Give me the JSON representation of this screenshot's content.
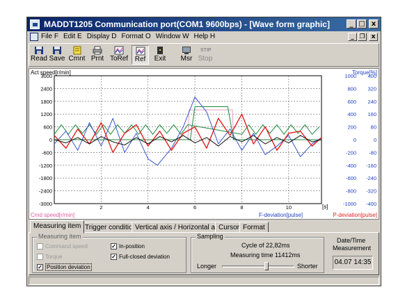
{
  "window": {
    "title": "MADDT1205  Communication port(COM1 9600bps)  - [Wave form graphic]",
    "controls": {
      "minimize": "_",
      "restore": "□",
      "close": "x"
    },
    "mdi_controls": {
      "minimize": "_",
      "restore": "❐",
      "close": "x"
    }
  },
  "menu": {
    "items": [
      "File F",
      "Edit E",
      "Display D",
      "Format O",
      "Window W",
      "Help H"
    ]
  },
  "toolbar": {
    "read": "Read",
    "save": "Save",
    "cmnt": "Cmnt",
    "prnt": "Prnt",
    "toref": "ToRef",
    "ref": "Ref",
    "exit": "Exit",
    "msr": "Msr",
    "stop": "Stop",
    "stop_icon": "STIP"
  },
  "chart_data": {
    "type": "line",
    "labels": {
      "left_top": "Act speed[r/min]",
      "left_bottom": "Cmd speed[r/min]",
      "right_top": "Torque[%]",
      "x_unit": "[s]",
      "fdev": "F-deviation[pulse]",
      "pdev": "P-deviation[pulse]"
    },
    "x_ticks": [
      "2",
      "4",
      "6",
      "8",
      "10"
    ],
    "xlim": [
      0,
      11.4
    ],
    "y_left_ticks": [
      "3000",
      "2400",
      "1800",
      "1200",
      "600",
      "0",
      "-600",
      "-1200",
      "-1800",
      "-2400",
      "-3000"
    ],
    "y_right1_ticks": [
      "1000",
      "800",
      "600",
      "400",
      "200",
      "0",
      "-200",
      "-400",
      "-600",
      "-800",
      "-1000"
    ],
    "y_right2_ticks": [
      "400",
      "320",
      "240",
      "160",
      "80",
      "0",
      "-80",
      "-160",
      "-240",
      "-320",
      "-400"
    ],
    "ylim_left": [
      -3000,
      3000
    ],
    "grid": true,
    "series": [
      {
        "color": "#e8a0c8",
        "x": [
          0,
          5.7,
          5.75,
          7.6,
          7.65,
          11.4
        ],
        "y": [
          0,
          0,
          1400,
          1400,
          0,
          0
        ]
      },
      {
        "color": "#1d8a3c",
        "x": [
          0,
          5.8,
          6.0,
          7.4,
          7.65,
          11.4
        ],
        "y": [
          0,
          0,
          1550,
          1550,
          0,
          0
        ]
      },
      {
        "color": "#1d8a3c",
        "x": [
          0.0,
          0.3,
          0.6,
          0.9,
          1.2,
          1.5,
          1.8,
          2.1,
          2.4,
          2.7,
          3.0,
          3.3,
          3.6,
          3.9,
          4.2,
          4.5,
          4.8,
          5.1,
          5.4,
          5.7,
          8.0,
          8.3,
          8.6,
          8.9,
          9.2,
          9.5,
          9.8,
          10.1,
          10.4,
          10.7,
          11.0,
          11.3
        ],
        "y": [
          250,
          700,
          250,
          700,
          300,
          700,
          250,
          700,
          250,
          700,
          300,
          700,
          250,
          700,
          250,
          700,
          300,
          700,
          250,
          700,
          250,
          700,
          250,
          700,
          300,
          700,
          250,
          700,
          300,
          700,
          250,
          600
        ]
      },
      {
        "color": "#3a56c8",
        "x": [
          0.0,
          0.5,
          1.0,
          1.5,
          2.0,
          2.5,
          3.0,
          3.5,
          4.0,
          4.4,
          5.0,
          5.5,
          6.0,
          6.5,
          7.0,
          7.5,
          8.0,
          8.5,
          9.0,
          9.5,
          10.0,
          10.5,
          11.0,
          11.4
        ],
        "y": [
          -200,
          400,
          -500,
          800,
          -300,
          1000,
          -600,
          300,
          -900,
          -1200,
          -400,
          600,
          2000,
          1300,
          -200,
          500,
          -500,
          300,
          -700,
          -300,
          200,
          -800,
          -200,
          100
        ]
      },
      {
        "color": "#e02020",
        "x": [
          0.0,
          0.5,
          1.0,
          1.5,
          2.0,
          2.5,
          3.0,
          3.5,
          4.0,
          4.5,
          5.0,
          5.5,
          6.0,
          6.5,
          7.0,
          7.5,
          8.0,
          8.5,
          9.0,
          9.5,
          10.0,
          10.5,
          11.0,
          11.4
        ],
        "y": [
          200,
          -400,
          500,
          -200,
          800,
          -600,
          300,
          700,
          -300,
          400,
          -500,
          300,
          600,
          -400,
          1000,
          200,
          1200,
          -200,
          600,
          -500,
          300,
          400,
          -300,
          100
        ]
      },
      {
        "color": "#101010",
        "x": [
          0.0,
          0.5,
          1.0,
          1.5,
          2.0,
          2.5,
          3.0,
          3.5,
          4.0,
          4.5,
          5.0,
          5.5,
          6.0,
          6.5,
          7.0,
          7.5,
          8.0,
          8.5,
          9.0,
          9.5,
          10.0,
          10.5,
          11.0,
          11.4
        ],
        "y": [
          0,
          -150,
          100,
          -200,
          150,
          -100,
          -250,
          100,
          -200,
          150,
          -100,
          200,
          -150,
          100,
          -300,
          150,
          -100,
          200,
          -200,
          100,
          -150,
          200,
          -100,
          0
        ]
      }
    ]
  },
  "tabs": [
    "Measuring item",
    "Trigger condition",
    "Vertical axis / Horizontal axis",
    "Cursor",
    "Format"
  ],
  "measuring": {
    "title": "Measuring item",
    "command_speed": "Command speed",
    "torque": "Torque",
    "position_deviation": "Position deviation",
    "in_position": "In-position",
    "full_closed_deviation": "Full-closed deviation",
    "check_mark": "✓"
  },
  "sampling": {
    "title": "Sampling",
    "cycle": "Cycle of 22,82ms",
    "measuring_time": "Measuring time 11412ms",
    "longer": "Longer",
    "shorter": "Shorter",
    "slider_position": 0.62
  },
  "datetime": {
    "label_line1": "Date/Time",
    "label_line2": "Measurement",
    "value": "04.07 14:35"
  }
}
